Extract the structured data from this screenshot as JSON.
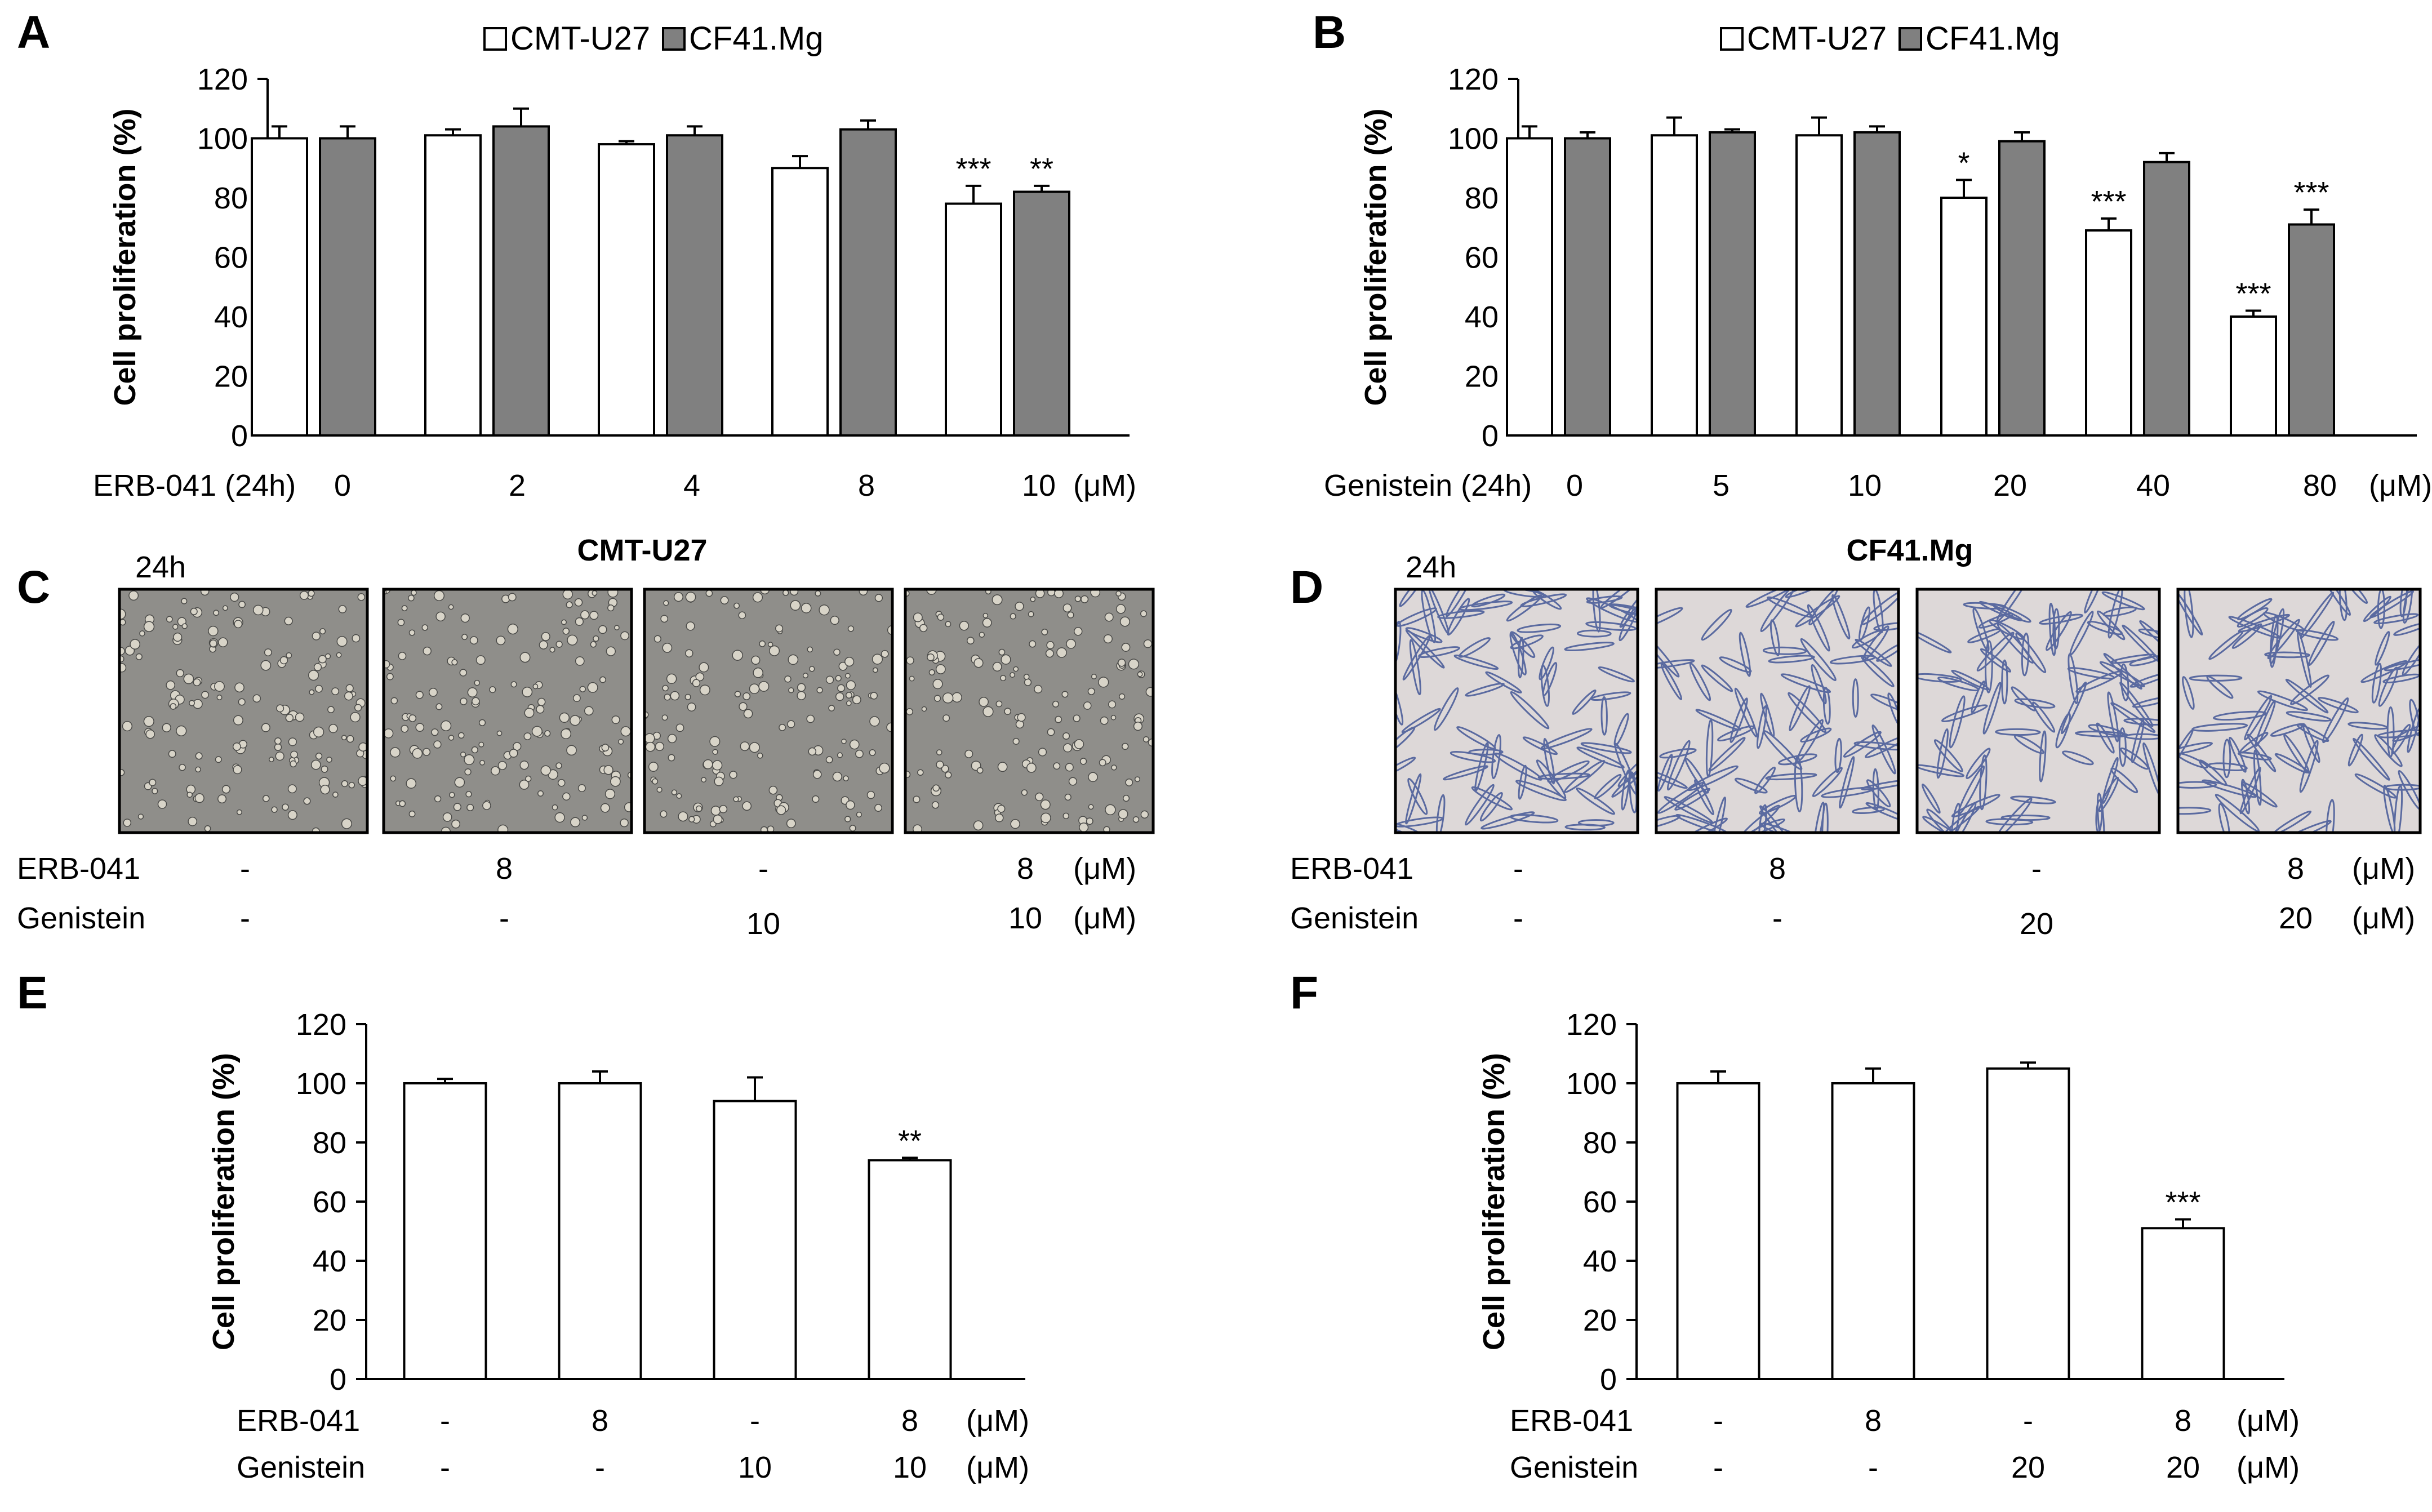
{
  "panel_labels": [
    "A",
    "B",
    "C",
    "D",
    "E",
    "F"
  ],
  "chart_data": [
    {
      "id": "A",
      "type": "bar",
      "ylabel": "Cell proliferation (%)",
      "ylim": [
        0,
        120
      ],
      "yticks": [
        "0",
        "20",
        "40",
        "60",
        "80",
        "100",
        "120"
      ],
      "legend": [
        "CMT-U27",
        "CF41.Mg"
      ],
      "row_label": "ERB-041  (24h)",
      "unit": "(μM)",
      "categories": [
        "0",
        "2",
        "4",
        "8",
        "10"
      ],
      "series": [
        {
          "name": "CMT-U27",
          "fill": "#ffffff",
          "values": [
            100,
            101,
            98,
            90,
            78
          ],
          "errors": [
            4,
            2,
            1,
            4,
            6
          ],
          "stars": [
            "",
            "",
            "",
            "",
            "***"
          ]
        },
        {
          "name": "CF41.Mg",
          "fill": "#808080",
          "values": [
            100,
            104,
            101,
            103,
            82
          ],
          "errors": [
            4,
            6,
            3,
            3,
            2
          ],
          "stars": [
            "",
            "",
            "",
            "",
            "**"
          ]
        }
      ]
    },
    {
      "id": "B",
      "type": "bar",
      "ylabel": "Cell proliferation (%)",
      "ylim": [
        0,
        120
      ],
      "yticks": [
        "0",
        "20",
        "40",
        "60",
        "80",
        "100",
        "120"
      ],
      "legend": [
        "CMT-U27",
        "CF41.Mg"
      ],
      "row_label": "Genistein  (24h)",
      "unit": "(μM)",
      "categories": [
        "0",
        "5",
        "10",
        "20",
        "40",
        "80"
      ],
      "series": [
        {
          "name": "CMT-U27",
          "fill": "#ffffff",
          "values": [
            100,
            101,
            101,
            80,
            69,
            40
          ],
          "errors": [
            4,
            6,
            6,
            6,
            4,
            2
          ],
          "stars": [
            "",
            "",
            "",
            "*",
            "***",
            "***"
          ]
        },
        {
          "name": "CF41.Mg",
          "fill": "#808080",
          "values": [
            100,
            102,
            102,
            99,
            92,
            71
          ],
          "errors": [
            2,
            1,
            2,
            3,
            3,
            5
          ],
          "stars": [
            "",
            "",
            "",
            "",
            "",
            "***"
          ]
        }
      ]
    },
    {
      "id": "E",
      "type": "bar",
      "ylabel": "Cell proliferation (%)",
      "ylim": [
        0,
        120
      ],
      "yticks": [
        "0",
        "20",
        "40",
        "60",
        "80",
        "100",
        "120"
      ],
      "rows": [
        {
          "label": "ERB-041",
          "values": [
            "-",
            "8",
            "-",
            "8"
          ],
          "unit": "(μM)"
        },
        {
          "label": "Genistein",
          "values": [
            "-",
            "-",
            "10",
            "10"
          ],
          "unit": "(μM)"
        }
      ],
      "series": [
        {
          "name": "CMT-U27",
          "fill": "#ffffff",
          "values": [
            100,
            100,
            94,
            74
          ],
          "errors": [
            1.5,
            4,
            8,
            0.8
          ],
          "stars": [
            "",
            "",
            "",
            "**"
          ]
        }
      ]
    },
    {
      "id": "F",
      "type": "bar",
      "ylabel": "Cell proliferation (%)",
      "ylim": [
        0,
        120
      ],
      "yticks": [
        "0",
        "20",
        "40",
        "60",
        "80",
        "100",
        "120"
      ],
      "rows": [
        {
          "label": "ERB-041",
          "values": [
            "-",
            "8",
            "-",
            "8"
          ],
          "unit": "(μM)"
        },
        {
          "label": "Genistein",
          "values": [
            "-",
            "-",
            "20",
            "20"
          ],
          "unit": "(μM)"
        }
      ],
      "series": [
        {
          "name": "CF41.Mg",
          "fill": "#ffffff",
          "values": [
            100,
            100,
            105,
            51
          ],
          "errors": [
            4,
            5,
            2,
            3
          ],
          "stars": [
            "",
            "",
            "",
            "***"
          ]
        }
      ]
    }
  ],
  "micrographs": [
    {
      "id": "C",
      "title": "CMT-U27",
      "time": "24h",
      "bg": "#8f8e8a",
      "cell_color": "#d8d4c8",
      "rows": [
        {
          "label": "ERB-041",
          "values": [
            "-",
            "8",
            "-",
            "8"
          ],
          "unit": "(μM)"
        },
        {
          "label": "Genistein",
          "values": [
            "-",
            "-",
            "10",
            "10"
          ],
          "unit": "(μM)"
        }
      ]
    },
    {
      "id": "D",
      "title": "CF41.Mg",
      "time": "24h",
      "bg": "#ddd8d8",
      "cell_color": "#5a6aa0",
      "rows": [
        {
          "label": "ERB-041",
          "values": [
            "-",
            "8",
            "-",
            "8"
          ],
          "unit": "(μM)"
        },
        {
          "label": "Genistein",
          "values": [
            "-",
            "-",
            "20",
            "20"
          ],
          "unit": "(μM)"
        }
      ]
    }
  ]
}
